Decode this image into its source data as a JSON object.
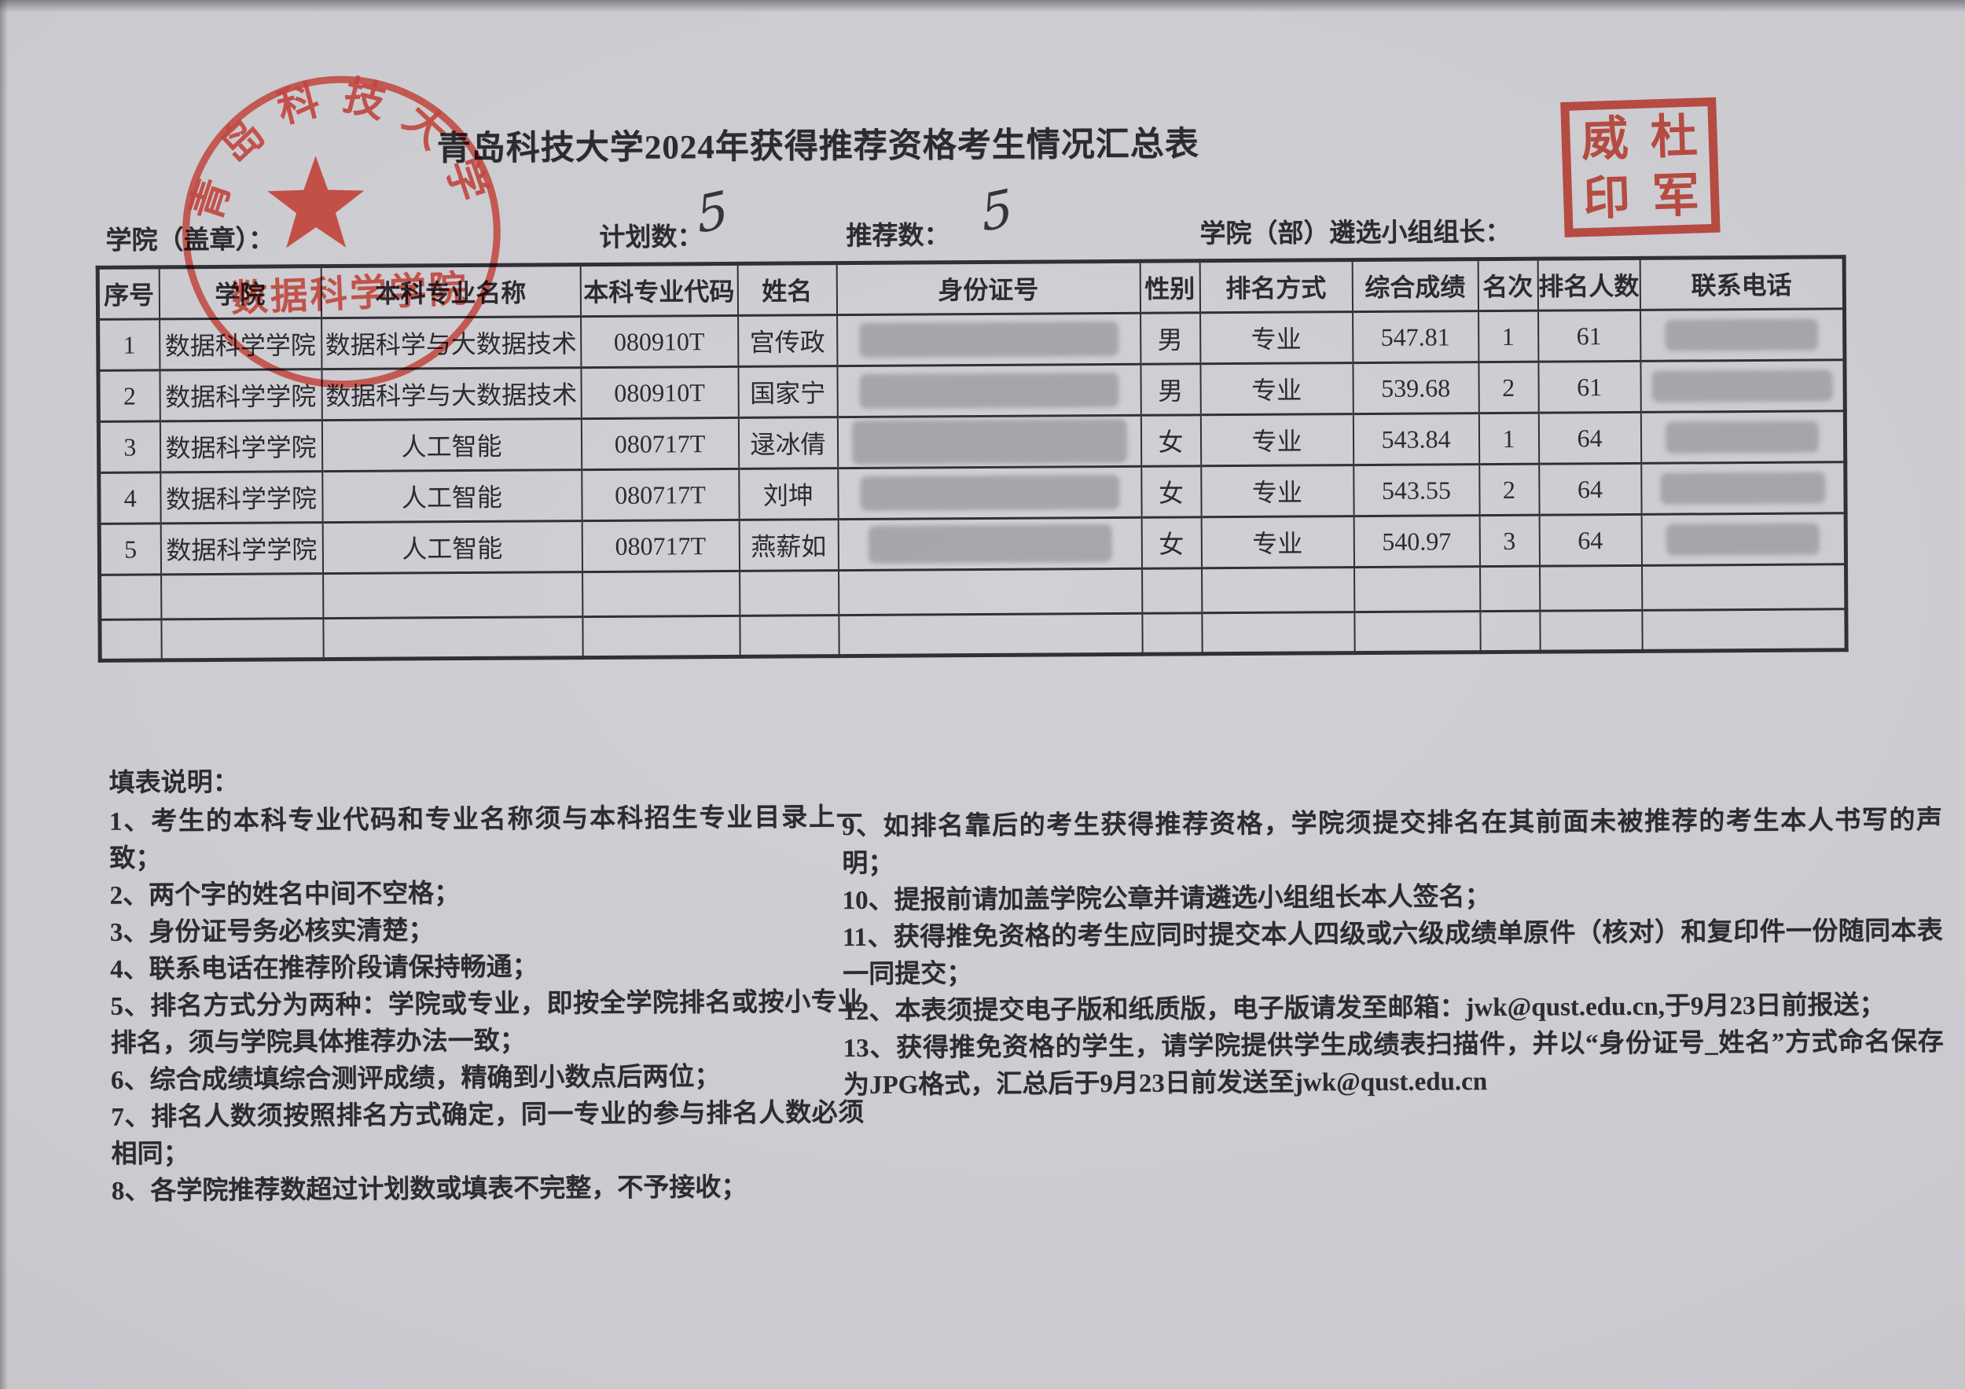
{
  "page": {
    "title": "青岛科技大学2024年获得推荐资格考生情况汇总表"
  },
  "form": {
    "college_label": "学院（盖章）：",
    "plan_label": "计划数：",
    "plan_value": "5",
    "recommend_label": "推荐数：",
    "recommend_value": "5",
    "leader_label": "学院（部）遴选小组组长："
  },
  "seals": {
    "round_seal": {
      "arc_text": "青岛科技大学",
      "bottom_text": "数据科学学院",
      "color": "#bf3a30"
    },
    "square_seal": {
      "chars": [
        "威",
        "杜",
        "印",
        "军"
      ],
      "color": "#b2392c"
    }
  },
  "table": {
    "headers": [
      "序号",
      "学院",
      "本科专业名称",
      "本科专业代码",
      "姓名",
      "身份证号",
      "性别",
      "排名方式",
      "综合成绩",
      "名次",
      "排名人数",
      "联系电话"
    ],
    "redacted_columns": [
      5,
      11
    ],
    "rows": [
      [
        "1",
        "数据科学学院",
        "数据科学与大数据技术",
        "080910T",
        "宫传政",
        "[blurred]",
        "男",
        "专业",
        "547.81",
        "1",
        "61",
        "[blurred]"
      ],
      [
        "2",
        "数据科学学院",
        "数据科学与大数据技术",
        "080910T",
        "国家宁",
        "[blurred]",
        "男",
        "专业",
        "539.68",
        "2",
        "61",
        "[blurred]"
      ],
      [
        "3",
        "数据科学学院",
        "人工智能",
        "080717T",
        "逯冰倩",
        "[blurred]",
        "女",
        "专业",
        "543.84",
        "1",
        "64",
        "[blurred]"
      ],
      [
        "4",
        "数据科学学院",
        "人工智能",
        "080717T",
        "刘坤",
        "[blurred]",
        "女",
        "专业",
        "543.55",
        "2",
        "64",
        "[blurred]"
      ],
      [
        "5",
        "数据科学学院",
        "人工智能",
        "080717T",
        "燕薪如",
        "[blurred]",
        "女",
        "专业",
        "540.97",
        "3",
        "64",
        "[blurred]"
      ]
    ],
    "empty_rows": 2
  },
  "notes": {
    "heading": "填表说明：",
    "left_items": [
      "1、考生的本科专业代码和专业名称须与本科招生专业目录上一致；",
      "2、两个字的姓名中间不空格；",
      "3、身份证号务必核实清楚；",
      "4、联系电话在推荐阶段请保持畅通；",
      "5、排名方式分为两种：学院或专业，即按全学院排名或按小专业排名，须与学院具体推荐办法一致；",
      "6、综合成绩填综合测评成绩，精确到小数点后两位；",
      "7、排名人数须按照排名方式确定，同一专业的参与排名人数必须相同；",
      "8、各学院推荐数超过计划数或填表不完整，不予接收；"
    ],
    "right_items": [
      "9、如排名靠后的考生获得推荐资格，学院须提交排名在其前面未被推荐的考生本人书写的声明；",
      "10、提报前请加盖学院公章并请遴选小组组长本人签名；",
      "11、获得推免资格的考生应同时提交本人四级或六级成绩单原件（核对）和复印件一份随同本表一同提交；",
      "12、本表须提交电子版和纸质版，电子版请发至邮箱：jwk@qust.edu.cn,于9月23日前报送；",
      "13、获得推免资格的学生，请学院提供学生成绩表扫描件，并以“身份证号_姓名”方式命名保存为JPG格式，汇总后于9月23日前发送至jwk@qust.edu.cn"
    ]
  }
}
